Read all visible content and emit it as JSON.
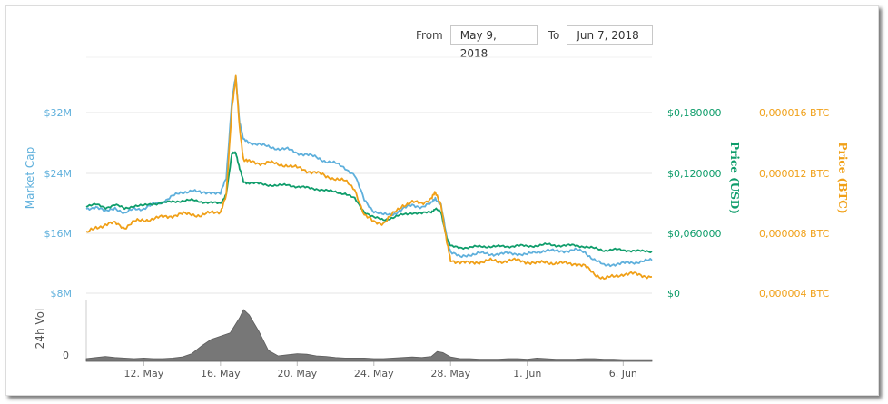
{
  "date_range": {
    "from_label": "From",
    "from_value": "May 9, 2018",
    "to_label": "To",
    "to_value": "Jun 7, 2018"
  },
  "colors": {
    "market_cap": "#5fb0dc",
    "price_usd": "#0f9d6b",
    "price_btc": "#f0a018",
    "volume": "#777777",
    "grid": "#e6e6e6",
    "axis_text": "#555555"
  },
  "chart_data": {
    "type": "line",
    "grid": true,
    "x_ticks": [
      "12. May",
      "16. May",
      "20. May",
      "24. May",
      "28. May",
      "1. Jun",
      "6. Jun"
    ],
    "x_range": [
      "May 9, 2018",
      "Jun 7, 2018"
    ],
    "axes": {
      "market_cap": {
        "label": "Market Cap",
        "ticks": [
          "$8M",
          "$16M",
          "$24M",
          "$32M"
        ],
        "range": [
          8,
          40
        ]
      },
      "price_usd": {
        "label": "Price (USD)",
        "ticks": [
          "$0",
          "$0,060000",
          "$0,120000",
          "$0,180000"
        ],
        "range": [
          0,
          0.24
        ]
      },
      "price_btc": {
        "label": "Price (BTC)",
        "ticks": [
          "0,000004 BTC",
          "0,000008 BTC",
          "0,000012 BTC",
          "0,000016 BTC"
        ],
        "range": [
          4e-06,
          2e-05
        ]
      },
      "volume": {
        "label": "24h Vol",
        "ticks": [
          "0"
        ]
      }
    },
    "series": [
      {
        "name": "Market Cap",
        "axis": "market_cap",
        "x": [
          9.0,
          9.5,
          10,
          10.5,
          11,
          11.5,
          12,
          12.5,
          13,
          13.5,
          14,
          14.5,
          15,
          15.5,
          16,
          16.3,
          16.6,
          16.8,
          17.0,
          17.2,
          17.5,
          18,
          18.5,
          19,
          19.5,
          20,
          20.5,
          21,
          21.5,
          22,
          22.5,
          23,
          23.5,
          24,
          24.5,
          25,
          25.5,
          26,
          26.5,
          27,
          27.2,
          27.5,
          27.8,
          28,
          28.5,
          29,
          29.5,
          30,
          30.5,
          31,
          31.5,
          32,
          32.5,
          33,
          33.5,
          34,
          34.5,
          35,
          35.5,
          36,
          36.5,
          37,
          37.5,
          38,
          38.5
        ],
        "values": [
          19.3,
          19.6,
          18.9,
          19.5,
          18.6,
          19.4,
          19.3,
          19.9,
          20.3,
          21.0,
          21.5,
          21.8,
          21.4,
          21.6,
          21.3,
          23.5,
          34.0,
          37.0,
          31.0,
          28.5,
          28.2,
          28.0,
          27.6,
          27.4,
          27.3,
          26.8,
          26.6,
          26.2,
          25.7,
          25.4,
          24.8,
          23.8,
          20.5,
          19.0,
          18.5,
          18.6,
          19.3,
          19.8,
          19.6,
          20.0,
          20.8,
          19.8,
          15.5,
          13.6,
          12.8,
          13.2,
          13.4,
          13.2,
          13.3,
          13.3,
          13.3,
          13.2,
          13.5,
          13.8,
          13.6,
          13.7,
          13.8,
          13.5,
          12.5,
          11.7,
          11.9,
          12.0,
          12.1,
          12.3,
          12.4
        ]
      },
      {
        "name": "Price (USD)",
        "axis": "price_usd",
        "x": [
          9.0,
          9.5,
          10,
          10.5,
          11,
          11.5,
          12,
          12.5,
          13,
          13.5,
          14,
          14.5,
          15,
          15.5,
          16,
          16.3,
          16.6,
          16.8,
          17.0,
          17.2,
          17.5,
          18,
          18.5,
          19,
          19.5,
          20,
          20.5,
          21,
          21.5,
          22,
          22.5,
          23,
          23.5,
          24,
          24.5,
          25,
          25.5,
          26,
          26.5,
          27,
          27.2,
          27.5,
          27.8,
          28,
          28.5,
          29,
          29.5,
          30,
          30.5,
          31,
          31.5,
          32,
          32.5,
          33,
          33.5,
          34,
          34.5,
          35,
          35.5,
          36,
          36.5,
          37,
          37.5,
          38,
          38.5
        ],
        "values": [
          0.088,
          0.089,
          0.086,
          0.089,
          0.085,
          0.088,
          0.088,
          0.09,
          0.091,
          0.092,
          0.093,
          0.0935,
          0.092,
          0.091,
          0.09,
          0.1,
          0.14,
          0.142,
          0.125,
          0.112,
          0.111,
          0.11,
          0.109,
          0.108,
          0.109,
          0.107,
          0.106,
          0.105,
          0.103,
          0.102,
          0.1,
          0.095,
          0.082,
          0.076,
          0.074,
          0.076,
          0.079,
          0.081,
          0.08,
          0.082,
          0.085,
          0.081,
          0.056,
          0.047,
          0.046,
          0.046,
          0.047,
          0.047,
          0.047,
          0.047,
          0.048,
          0.047,
          0.048,
          0.049,
          0.048,
          0.048,
          0.048,
          0.047,
          0.045,
          0.043,
          0.044,
          0.043,
          0.043,
          0.042,
          0.042
        ]
      },
      {
        "name": "Price (BTC)",
        "axis": "price_btc",
        "x": [
          9.0,
          9.5,
          10,
          10.5,
          11,
          11.5,
          12,
          12.5,
          13,
          13.5,
          14,
          14.5,
          15,
          15.5,
          16,
          16.3,
          16.6,
          16.8,
          17.0,
          17.2,
          17.5,
          18,
          18.5,
          19,
          19.5,
          20,
          20.5,
          21,
          21.5,
          22,
          22.5,
          23,
          23.5,
          24,
          24.5,
          25,
          25.5,
          26,
          26.5,
          27,
          27.2,
          27.5,
          27.8,
          28,
          28.5,
          29,
          29.5,
          30,
          30.5,
          31,
          31.5,
          32,
          32.5,
          33,
          33.5,
          34,
          34.5,
          35,
          35.5,
          36,
          36.5,
          37,
          37.5,
          38,
          38.5
        ],
        "values": [
          8e-06,
          8.4e-06,
          8.6e-06,
          8.7e-06,
          8.4e-06,
          8.8e-06,
          8.9e-06,
          9e-06,
          9.1e-06,
          9.2e-06,
          9.3e-06,
          9.3e-06,
          9.2e-06,
          9.4e-06,
          9.5e-06,
          1.05e-05,
          1.65e-05,
          1.85e-05,
          1.5e-05,
          1.3e-05,
          1.28e-05,
          1.27e-05,
          1.28e-05,
          1.26e-05,
          1.26e-05,
          1.24e-05,
          1.22e-05,
          1.21e-05,
          1.18e-05,
          1.17e-05,
          1.15e-05,
          1.1e-05,
          9.2e-06,
          8.8e-06,
          8.7e-06,
          9.3e-06,
          9.9e-06,
          1.01e-05,
          1e-05,
          1.04e-05,
          1.07e-05,
          1e-05,
          7.4e-06,
          6.2e-06,
          6.1e-06,
          6e-06,
          6.1e-06,
          6.2e-06,
          6.1e-06,
          6.2e-06,
          6.2e-06,
          6.1e-06,
          6e-06,
          6.1e-06,
          6e-06,
          6e-06,
          6e-06,
          5.8e-06,
          5.3e-06,
          5e-06,
          5.1e-06,
          5.3e-06,
          5.3e-06,
          5.2e-06,
          5.1e-06
        ]
      },
      {
        "name": "24h Vol",
        "axis": "volume",
        "type": "area",
        "x": [
          9.0,
          9.5,
          10,
          10.5,
          11,
          11.5,
          12,
          12.5,
          13,
          13.5,
          14,
          14.5,
          15,
          15.5,
          16,
          16.5,
          17,
          17.2,
          17.5,
          18,
          18.5,
          19,
          19.5,
          20,
          20.5,
          21,
          21.5,
          22,
          22.5,
          23,
          23.5,
          24,
          24.5,
          25,
          25.5,
          26,
          26.5,
          27,
          27.3,
          27.6,
          28,
          28.5,
          29,
          29.5,
          30,
          30.5,
          31,
          31.5,
          32,
          32.5,
          33,
          33.5,
          34,
          34.5,
          35,
          35.5,
          36,
          36.5,
          37,
          37.5,
          38,
          38.5
        ],
        "values": [
          0.05,
          0.07,
          0.09,
          0.07,
          0.06,
          0.05,
          0.06,
          0.05,
          0.05,
          0.06,
          0.08,
          0.14,
          0.28,
          0.4,
          0.46,
          0.52,
          0.8,
          0.95,
          0.85,
          0.55,
          0.2,
          0.1,
          0.12,
          0.14,
          0.13,
          0.1,
          0.09,
          0.07,
          0.06,
          0.06,
          0.06,
          0.05,
          0.05,
          0.06,
          0.07,
          0.08,
          0.07,
          0.09,
          0.18,
          0.16,
          0.08,
          0.05,
          0.05,
          0.04,
          0.04,
          0.04,
          0.05,
          0.05,
          0.04,
          0.06,
          0.05,
          0.04,
          0.04,
          0.04,
          0.05,
          0.05,
          0.04,
          0.04,
          0.03,
          0.03,
          0.03,
          0.03
        ]
      }
    ]
  }
}
